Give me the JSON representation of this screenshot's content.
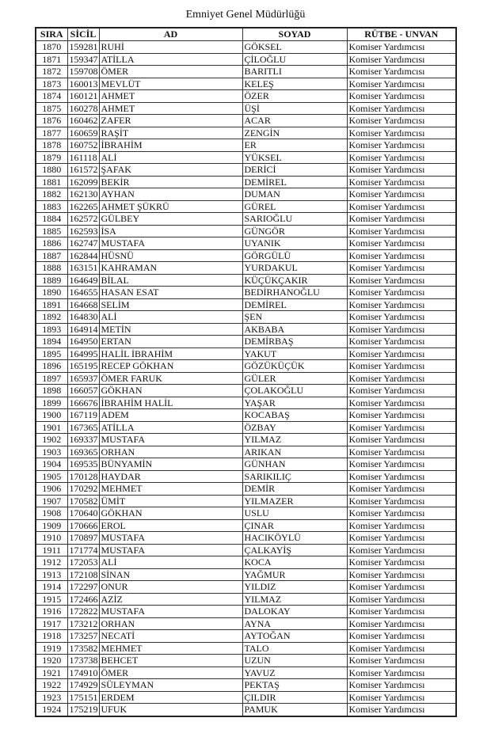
{
  "title": "Emniyet Genel Müdürlüğü",
  "columns": {
    "sira": "SIRA",
    "sicil": "SİCİL",
    "ad": "AD",
    "soyad": "SOYAD",
    "rutbe": "RÜTBE - UNVAN"
  },
  "rows": [
    [
      "1870",
      "159281",
      "RUHİ",
      "GÖKSEL",
      "Komiser Yardımcısı"
    ],
    [
      "1871",
      "159347",
      "ATİLLA",
      "ÇİLOĞLU",
      "Komiser Yardımcısı"
    ],
    [
      "1872",
      "159708",
      "ÖMER",
      "BARITLI",
      "Komiser Yardımcısı"
    ],
    [
      "1873",
      "160013",
      "MEVLÜT",
      "KELEŞ",
      "Komiser Yardımcısı"
    ],
    [
      "1874",
      "160121",
      "AHMET",
      "ÖZER",
      "Komiser Yardımcısı"
    ],
    [
      "1875",
      "160278",
      "AHMET",
      "ÜŞİ",
      "Komiser Yardımcısı"
    ],
    [
      "1876",
      "160462",
      "ZAFER",
      "ACAR",
      "Komiser Yardımcısı"
    ],
    [
      "1877",
      "160659",
      "RAŞİT",
      "ZENGİN",
      "Komiser Yardımcısı"
    ],
    [
      "1878",
      "160752",
      "İBRAHİM",
      "ER",
      "Komiser Yardımcısı"
    ],
    [
      "1879",
      "161118",
      "ALİ",
      "YÜKSEL",
      "Komiser Yardımcısı"
    ],
    [
      "1880",
      "161572",
      "ŞAFAK",
      "DERİCİ",
      "Komiser Yardımcısı"
    ],
    [
      "1881",
      "162099",
      "BEKİR",
      "DEMİREL",
      "Komiser Yardımcısı"
    ],
    [
      "1882",
      "162130",
      "AYHAN",
      "DUMAN",
      "Komiser Yardımcısı"
    ],
    [
      "1883",
      "162265",
      "AHMET ŞÜKRÜ",
      "GÜREL",
      "Komiser Yardımcısı"
    ],
    [
      "1884",
      "162572",
      "GÜLBEY",
      "SARIOĞLU",
      "Komiser Yardımcısı"
    ],
    [
      "1885",
      "162593",
      "İSA",
      "GÜNGÖR",
      "Komiser Yardımcısı"
    ],
    [
      "1886",
      "162747",
      "MUSTAFA",
      "UYANIK",
      "Komiser Yardımcısı"
    ],
    [
      "1887",
      "162844",
      "HÜSNÜ",
      "GÖRGÜLÜ",
      "Komiser Yardımcısı"
    ],
    [
      "1888",
      "163151",
      "KAHRAMAN",
      "YURDAKUL",
      "Komiser Yardımcısı"
    ],
    [
      "1889",
      "164649",
      "BİLAL",
      "KÜÇÜKÇAKIR",
      "Komiser Yardımcısı"
    ],
    [
      "1890",
      "164655",
      "HASAN ESAT",
      "BEDİRHANOĞLU",
      "Komiser Yardımcısı"
    ],
    [
      "1891",
      "164668",
      "SELİM",
      "DEMİREL",
      "Komiser Yardımcısı"
    ],
    [
      "1892",
      "164830",
      "ALİ",
      "ŞEN",
      "Komiser Yardımcısı"
    ],
    [
      "1893",
      "164914",
      "METİN",
      "AKBABA",
      "Komiser Yardımcısı"
    ],
    [
      "1894",
      "164950",
      "ERTAN",
      "DEMİRBAŞ",
      "Komiser Yardımcısı"
    ],
    [
      "1895",
      "164995",
      "HALİL İBRAHİM",
      "YAKUT",
      "Komiser Yardımcısı"
    ],
    [
      "1896",
      "165195",
      "RECEP GÖKHAN",
      "GÖZÜKÜÇÜK",
      "Komiser Yardımcısı"
    ],
    [
      "1897",
      "165937",
      "ÖMER FARUK",
      "GÜLER",
      "Komiser Yardımcısı"
    ],
    [
      "1898",
      "166057",
      "GÖKHAN",
      "ÇOLAKOĞLU",
      "Komiser Yardımcısı"
    ],
    [
      "1899",
      "166676",
      "İBRAHİM HALİL",
      "YAŞAR",
      "Komiser Yardımcısı"
    ],
    [
      "1900",
      "167119",
      "ADEM",
      "KOCABAŞ",
      "Komiser Yardımcısı"
    ],
    [
      "1901",
      "167365",
      "ATİLLA",
      "ÖZBAY",
      "Komiser Yardımcısı"
    ],
    [
      "1902",
      "169337",
      "MUSTAFA",
      "YILMAZ",
      "Komiser Yardımcısı"
    ],
    [
      "1903",
      "169365",
      "ORHAN",
      "ARIKAN",
      "Komiser Yardımcısı"
    ],
    [
      "1904",
      "169535",
      "BÜNYAMİN",
      "GÜNHAN",
      "Komiser Yardımcısı"
    ],
    [
      "1905",
      "170128",
      "HAYDAR",
      "SARIKILIÇ",
      "Komiser Yardımcısı"
    ],
    [
      "1906",
      "170292",
      "MEHMET",
      "DEMİR",
      "Komiser Yardımcısı"
    ],
    [
      "1907",
      "170582",
      "ÜMİT",
      "YILMAZER",
      "Komiser Yardımcısı"
    ],
    [
      "1908",
      "170640",
      "GÖKHAN",
      "USLU",
      "Komiser Yardımcısı"
    ],
    [
      "1909",
      "170666",
      "EROL",
      "ÇINAR",
      "Komiser Yardımcısı"
    ],
    [
      "1910",
      "170897",
      "MUSTAFA",
      "HACIKÖYLÜ",
      "Komiser Yardımcısı"
    ],
    [
      "1911",
      "171774",
      "MUSTAFA",
      "ÇALKAYİŞ",
      "Komiser Yardımcısı"
    ],
    [
      "1912",
      "172053",
      "ALİ",
      "KOCA",
      "Komiser Yardımcısı"
    ],
    [
      "1913",
      "172108",
      "SİNAN",
      "YAĞMUR",
      "Komiser Yardımcısı"
    ],
    [
      "1914",
      "172297",
      "ONUR",
      "YILDIZ",
      "Komiser Yardımcısı"
    ],
    [
      "1915",
      "172466",
      "AZİZ",
      "YILMAZ",
      "Komiser Yardımcısı"
    ],
    [
      "1916",
      "172822",
      "MUSTAFA",
      "DALOKAY",
      "Komiser Yardımcısı"
    ],
    [
      "1917",
      "173212",
      "ORHAN",
      "AYNA",
      "Komiser Yardımcısı"
    ],
    [
      "1918",
      "173257",
      "NECATİ",
      "AYTOĞAN",
      "Komiser Yardımcısı"
    ],
    [
      "1919",
      "173582",
      "MEHMET",
      "TALO",
      "Komiser Yardımcısı"
    ],
    [
      "1920",
      "173738",
      "BEHCET",
      "UZUN",
      "Komiser Yardımcısı"
    ],
    [
      "1921",
      "174910",
      "ÖMER",
      "YAVUZ",
      "Komiser Yardımcısı"
    ],
    [
      "1922",
      "174929",
      "SÜLEYMAN",
      "PEKTAŞ",
      "Komiser Yardımcısı"
    ],
    [
      "1923",
      "175151",
      "ERDEM",
      "ÇILDIR",
      "Komiser Yardımcısı"
    ],
    [
      "1924",
      "175219",
      "UFUK",
      "PAMUK",
      "Komiser Yardımcısı"
    ]
  ]
}
